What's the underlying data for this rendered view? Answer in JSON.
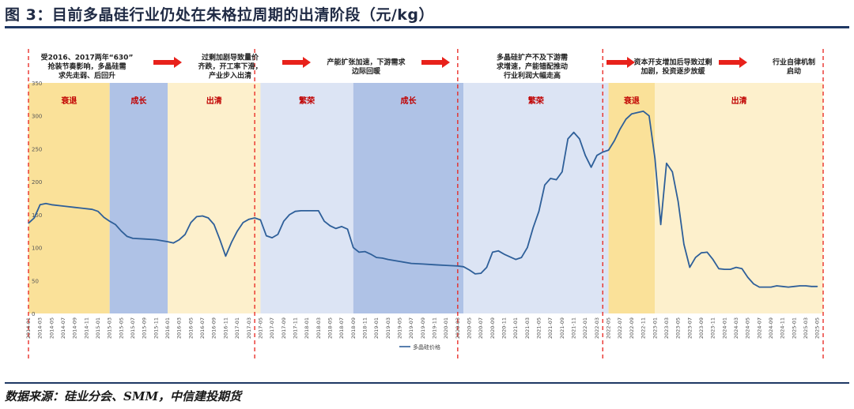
{
  "figure": {
    "title": "图 3：目前多晶硅行业仍处在朱格拉周期的出清阶段（元/kg）",
    "source": "数据来源：硅业分会、SMM，中信建投期货"
  },
  "annotations": [
    {
      "name": "annotation-2016-630",
      "lines": [
        "受2016、2017两年“630”",
        "抢装节奏影响，多晶硅需",
        "求先走弱、后回升"
      ]
    },
    {
      "name": "annotation-overcapacity",
      "lines": [
        "过剩加剧导致量价",
        "齐跌，开工率下滑，",
        "产业步入出清"
      ]
    },
    {
      "name": "annotation-capacity-expansion",
      "lines": [
        "产能扩张加速，下游需求",
        "边际回暖"
      ]
    },
    {
      "name": "annotation-supply-shortage",
      "lines": [
        "多晶硅扩产不及下游需",
        "求增速，产能错配推动",
        "行业利润大幅走高"
      ]
    },
    {
      "name": "annotation-capex-surplus",
      "lines": [
        "资本开支增加后导致过剩",
        "加剧，投资逐步放缓"
      ]
    },
    {
      "name": "annotation-self-discipline",
      "lines": [
        "行业自律机制",
        "启动"
      ]
    }
  ],
  "colors": {
    "recession": "#FAE199",
    "growth": "#AFC2E6",
    "clearing": "#FDF0CC",
    "prosperity": "#DCE4F4",
    "phase_text": "#C00000",
    "arrow": "#E8211B",
    "line": "#2E5F99",
    "divider": "#E8211B"
  },
  "chart_data": {
    "type": "line",
    "title": "",
    "xlabel": "",
    "ylabel": "",
    "ylim": [
      0,
      350
    ],
    "yticks": [
      0,
      50,
      100,
      150,
      200,
      250,
      300,
      350
    ],
    "grid": false,
    "legend_position": "bottom-center",
    "x_ticks": [
      "2014-01",
      "2014-03",
      "2014-05",
      "2014-07",
      "2014-09",
      "2014-11",
      "2015-01",
      "2015-03",
      "2015-05",
      "2015-07",
      "2015-09",
      "2015-11",
      "2016-01",
      "2016-03",
      "2016-05",
      "2016-07",
      "2016-09",
      "2016-11",
      "2017-01",
      "2017-03",
      "2017-05",
      "2017-07",
      "2017-09",
      "2017-11",
      "2018-01",
      "2018-03",
      "2018-05",
      "2018-07",
      "2018-09",
      "2018-11",
      "2019-01",
      "2019-03",
      "2019-05",
      "2019-07",
      "2019-09",
      "2019-11",
      "2020-01",
      "2020-03",
      "2020-05",
      "2020-07",
      "2020-09",
      "2020-11",
      "2021-01",
      "2021-03",
      "2021-05",
      "2021-07",
      "2021-09",
      "2021-11",
      "2022-01",
      "2022-03",
      "2022-05",
      "2022-07",
      "2022-09",
      "2022-11",
      "2023-01",
      "2023-03",
      "2023-05",
      "2023-07",
      "2023-09",
      "2023-11",
      "2024-01",
      "2024-03",
      "2024-05",
      "2024-07",
      "2024-09",
      "2024-11",
      "2025-01",
      "2025-03",
      "2025-05"
    ],
    "phases": [
      {
        "label": "衰退",
        "kind": "recession",
        "start": "2014-01",
        "end": "2015-02"
      },
      {
        "label": "成长",
        "kind": "growth",
        "start": "2015-03",
        "end": "2015-12"
      },
      {
        "label": "出清",
        "kind": "clearing",
        "start": "2016-01",
        "end": "2017-04"
      },
      {
        "label": "繁荣",
        "kind": "prosperity",
        "start": "2017-05",
        "end": "2018-08"
      },
      {
        "label": "成长",
        "kind": "growth",
        "start": "2018-09",
        "end": "2020-03"
      },
      {
        "label": "繁荣",
        "kind": "prosperity",
        "start": "2020-04",
        "end": "2022-04"
      },
      {
        "label": "衰退",
        "kind": "recession",
        "start": "2022-05",
        "end": "2022-12"
      },
      {
        "label": "出清",
        "kind": "clearing",
        "start": "2023-01",
        "end": "2025-06"
      }
    ],
    "dividers": [
      "2014-01",
      "2017-04",
      "2020-03",
      "2022-04",
      "2025-06"
    ],
    "series": [
      {
        "name": "多晶硅价格",
        "points": [
          [
            "2014-01",
            137
          ],
          [
            "2014-02",
            145
          ],
          [
            "2014-03",
            165
          ],
          [
            "2014-04",
            167
          ],
          [
            "2014-05",
            165
          ],
          [
            "2014-07",
            163
          ],
          [
            "2014-09",
            161
          ],
          [
            "2014-10",
            160
          ],
          [
            "2014-12",
            158
          ],
          [
            "2015-01",
            155
          ],
          [
            "2015-02",
            146
          ],
          [
            "2015-03",
            140
          ],
          [
            "2015-04",
            135
          ],
          [
            "2015-05",
            125
          ],
          [
            "2015-06",
            117
          ],
          [
            "2015-07",
            114
          ],
          [
            "2015-09",
            113
          ],
          [
            "2015-11",
            112
          ],
          [
            "2016-01",
            109
          ],
          [
            "2016-02",
            107
          ],
          [
            "2016-03",
            112
          ],
          [
            "2016-04",
            120
          ],
          [
            "2016-05",
            138
          ],
          [
            "2016-06",
            147
          ],
          [
            "2016-07",
            148
          ],
          [
            "2016-08",
            145
          ],
          [
            "2016-09",
            135
          ],
          [
            "2016-10",
            112
          ],
          [
            "2016-11",
            87
          ],
          [
            "2016-12",
            108
          ],
          [
            "2017-01",
            125
          ],
          [
            "2017-02",
            138
          ],
          [
            "2017-03",
            143
          ],
          [
            "2017-04",
            145
          ],
          [
            "2017-05",
            142
          ],
          [
            "2017-06",
            118
          ],
          [
            "2017-07",
            115
          ],
          [
            "2017-08",
            120
          ],
          [
            "2017-09",
            140
          ],
          [
            "2017-10",
            150
          ],
          [
            "2017-11",
            155
          ],
          [
            "2017-12",
            156
          ],
          [
            "2018-01",
            156
          ],
          [
            "2018-02",
            156
          ],
          [
            "2018-03",
            156
          ],
          [
            "2018-04",
            140
          ],
          [
            "2018-05",
            133
          ],
          [
            "2018-06",
            129
          ],
          [
            "2018-07",
            132
          ],
          [
            "2018-08",
            128
          ],
          [
            "2018-09",
            100
          ],
          [
            "2018-10",
            93
          ],
          [
            "2018-11",
            94
          ],
          [
            "2018-12",
            90
          ],
          [
            "2019-01",
            85
          ],
          [
            "2019-02",
            84
          ],
          [
            "2019-03",
            82
          ],
          [
            "2019-05",
            79
          ],
          [
            "2019-07",
            76
          ],
          [
            "2019-09",
            75
          ],
          [
            "2019-11",
            74
          ],
          [
            "2020-01",
            73
          ],
          [
            "2020-03",
            72
          ],
          [
            "2020-04",
            71
          ],
          [
            "2020-05",
            66
          ],
          [
            "2020-06",
            60
          ],
          [
            "2020-07",
            61
          ],
          [
            "2020-08",
            70
          ],
          [
            "2020-09",
            93
          ],
          [
            "2020-10",
            95
          ],
          [
            "2020-11",
            90
          ],
          [
            "2020-12",
            86
          ],
          [
            "2021-01",
            82
          ],
          [
            "2021-02",
            85
          ],
          [
            "2021-03",
            100
          ],
          [
            "2021-04",
            130
          ],
          [
            "2021-05",
            155
          ],
          [
            "2021-06",
            195
          ],
          [
            "2021-07",
            205
          ],
          [
            "2021-08",
            203
          ],
          [
            "2021-09",
            215
          ],
          [
            "2021-10",
            265
          ],
          [
            "2021-11",
            275
          ],
          [
            "2021-12",
            265
          ],
          [
            "2022-01",
            240
          ],
          [
            "2022-02",
            222
          ],
          [
            "2022-03",
            240
          ],
          [
            "2022-04",
            245
          ],
          [
            "2022-05",
            248
          ],
          [
            "2022-06",
            262
          ],
          [
            "2022-07",
            280
          ],
          [
            "2022-08",
            295
          ],
          [
            "2022-09",
            303
          ],
          [
            "2022-10",
            305
          ],
          [
            "2022-11",
            307
          ],
          [
            "2022-12",
            300
          ],
          [
            "2023-01",
            235
          ],
          [
            "2023-02",
            135
          ],
          [
            "2023-03",
            228
          ],
          [
            "2023-04",
            215
          ],
          [
            "2023-05",
            170
          ],
          [
            "2023-06",
            105
          ],
          [
            "2023-07",
            70
          ],
          [
            "2023-08",
            85
          ],
          [
            "2023-09",
            92
          ],
          [
            "2023-10",
            93
          ],
          [
            "2023-11",
            82
          ],
          [
            "2023-12",
            68
          ],
          [
            "2024-01",
            67
          ],
          [
            "2024-02",
            67
          ],
          [
            "2024-03",
            70
          ],
          [
            "2024-04",
            68
          ],
          [
            "2024-05",
            55
          ],
          [
            "2024-06",
            45
          ],
          [
            "2024-07",
            40
          ],
          [
            "2024-08",
            40
          ],
          [
            "2024-09",
            40
          ],
          [
            "2024-10",
            42
          ],
          [
            "2024-11",
            41
          ],
          [
            "2024-12",
            40
          ],
          [
            "2025-01",
            41
          ],
          [
            "2025-02",
            42
          ],
          [
            "2025-03",
            42
          ],
          [
            "2025-04",
            41
          ],
          [
            "2025-05",
            41
          ]
        ]
      }
    ]
  }
}
